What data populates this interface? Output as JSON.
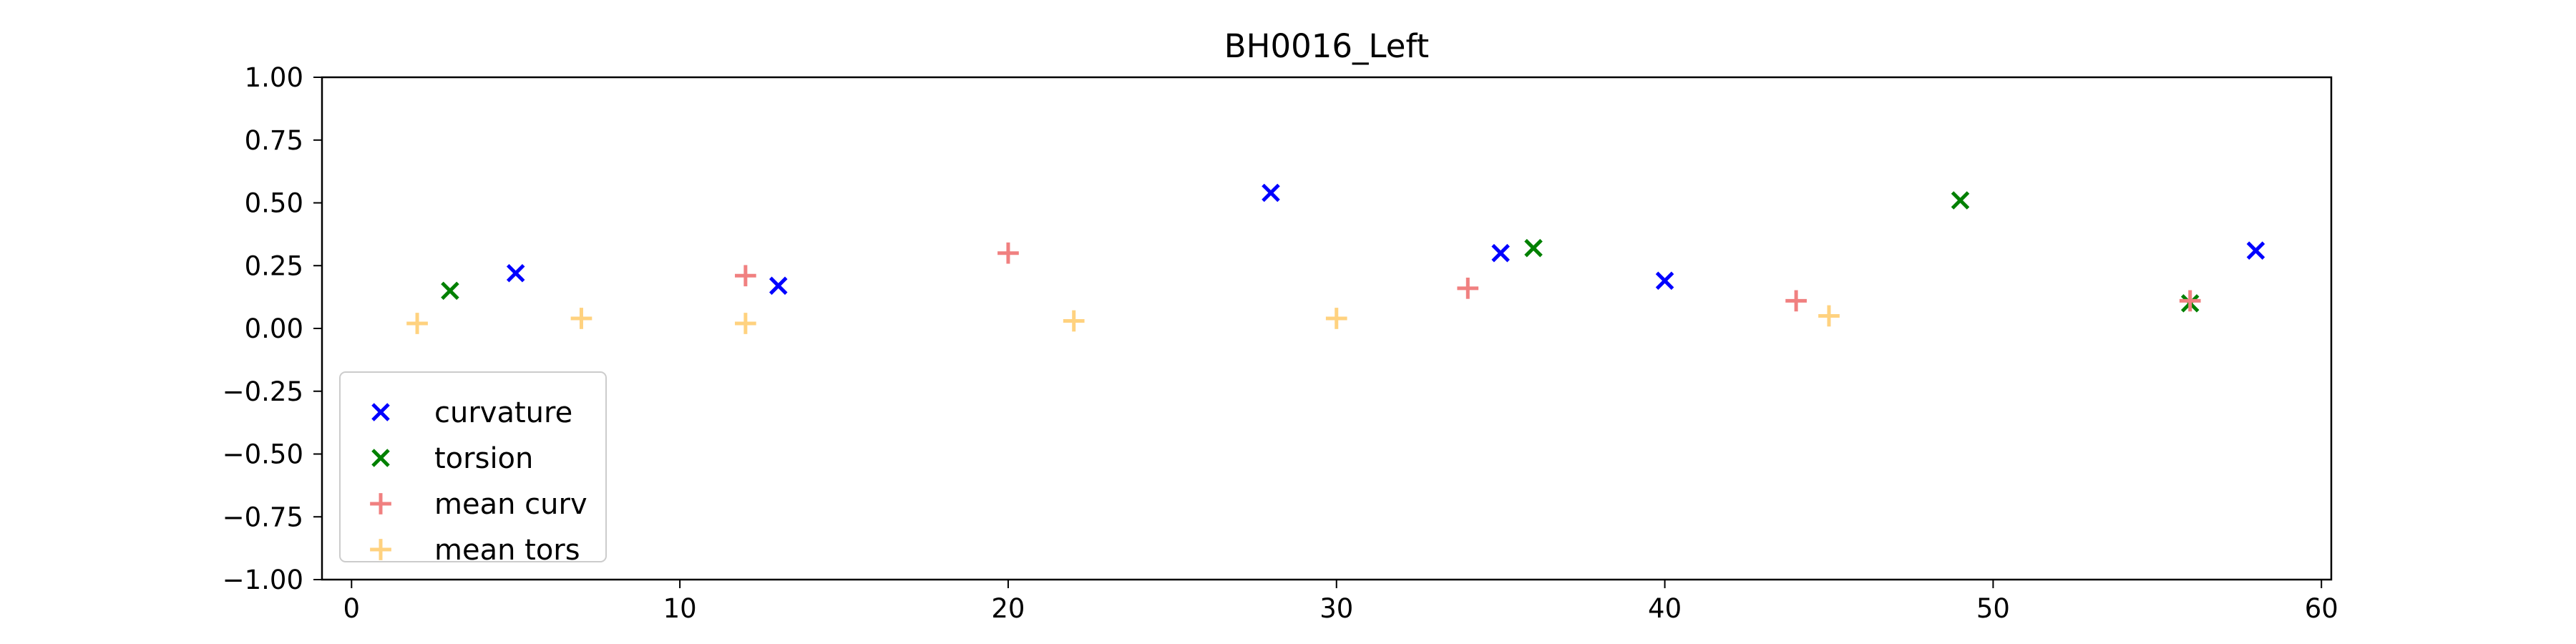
{
  "chart_data": {
    "type": "scatter",
    "title": "BH0016_Left",
    "xlabel": "",
    "ylabel": "",
    "xlim": [
      -0.9,
      60.3
    ],
    "ylim": [
      -1.0,
      1.0
    ],
    "xticks": [
      0,
      10,
      20,
      30,
      40,
      50,
      60
    ],
    "xtick_labels": [
      "0",
      "10",
      "20",
      "30",
      "40",
      "50",
      "60"
    ],
    "yticks": [
      1.0,
      0.75,
      0.5,
      0.25,
      0.0,
      -0.25,
      -0.5,
      -0.75,
      -1.0
    ],
    "ytick_labels": [
      "1.00",
      "0.75",
      "0.50",
      "0.25",
      "0.00",
      "−0.25",
      "−0.50",
      "−0.75",
      "−1.00"
    ],
    "grid": false,
    "legend_position": "lower-left",
    "series": [
      {
        "name": "curvature",
        "marker": "x",
        "color": "#0000ff",
        "x": [
          5,
          13,
          28,
          35,
          40,
          58
        ],
        "y": [
          0.22,
          0.17,
          0.54,
          0.3,
          0.19,
          0.31
        ]
      },
      {
        "name": "torsion",
        "marker": "x",
        "color": "#008000",
        "x": [
          3,
          36,
          49,
          56
        ],
        "y": [
          0.15,
          0.32,
          0.51,
          0.1
        ]
      },
      {
        "name": "mean curv",
        "marker": "+",
        "color": "#f08080",
        "x": [
          12,
          20,
          34,
          44,
          56
        ],
        "y": [
          0.21,
          0.3,
          0.16,
          0.11,
          0.11
        ]
      },
      {
        "name": "mean tors",
        "marker": "+",
        "color": "#ffd27f",
        "x": [
          2,
          7,
          12,
          22,
          30,
          45
        ],
        "y": [
          0.02,
          0.04,
          0.02,
          0.03,
          0.04,
          0.05
        ]
      }
    ]
  }
}
